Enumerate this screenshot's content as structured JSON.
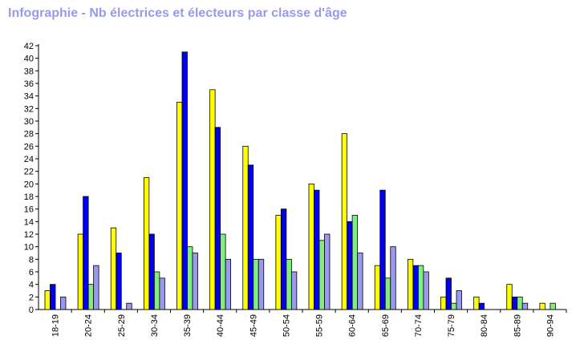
{
  "chart_data": {
    "type": "bar",
    "title": "Infographie - Nb électrices et électeurs par classe d'âge",
    "categories": [
      "18-19",
      "20-24",
      "25-29",
      "30-34",
      "35-39",
      "40-44",
      "45-49",
      "50-54",
      "55-59",
      "60-64",
      "65-69",
      "70-74",
      "75-79",
      "80-84",
      "85-89",
      "90-94"
    ],
    "series": [
      {
        "color": "#ffff00",
        "values": [
          3,
          12,
          13,
          21,
          33,
          35,
          26,
          15,
          20,
          28,
          7,
          8,
          2,
          2,
          4,
          1
        ]
      },
      {
        "color": "#0000ee",
        "values": [
          4,
          18,
          9,
          12,
          41,
          29,
          23,
          16,
          19,
          14,
          19,
          7,
          5,
          1,
          2,
          0
        ]
      },
      {
        "color": "#80ee80",
        "values": [
          0,
          4,
          0,
          6,
          10,
          12,
          8,
          8,
          11,
          15,
          5,
          7,
          1,
          0,
          2,
          1
        ]
      },
      {
        "color": "#9999ee",
        "values": [
          2,
          7,
          1,
          5,
          9,
          8,
          8,
          6,
          12,
          9,
          10,
          6,
          3,
          0,
          1,
          0
        ]
      }
    ],
    "yticks": [
      0,
      2,
      4,
      6,
      8,
      10,
      12,
      14,
      16,
      18,
      20,
      22,
      24,
      26,
      28,
      30,
      32,
      34,
      36,
      38,
      40,
      42
    ],
    "ylim": [
      0,
      42
    ],
    "grid": false
  }
}
